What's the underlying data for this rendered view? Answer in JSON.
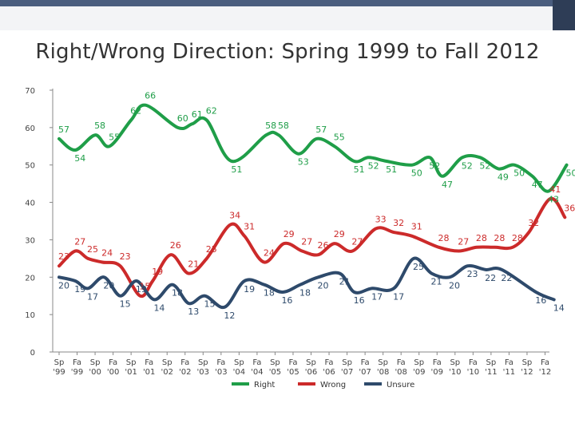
{
  "title": "Right/Wrong Direction: Spring 1999 to Fall 2012",
  "chart_data": {
    "type": "line",
    "title": "Right/Wrong Direction: Spring 1999 to Fall 2012",
    "xlabel": "",
    "ylabel": "",
    "ylim": [
      0,
      70
    ],
    "yticks": [
      0,
      10,
      20,
      30,
      40,
      50,
      60,
      70
    ],
    "grid": false,
    "legend_position": "bottom",
    "categories": [
      "Sp '99",
      "Fa '99",
      "Sp '00",
      "Fa '00",
      "Sp '01",
      "Fa '01",
      "Sp '02",
      "Fa '02",
      "Sp '03",
      "Fa '03",
      "Sp '04",
      "Fa '04",
      "Sp '05",
      "Fa '05",
      "Sp '06",
      "Fa '06",
      "Sp '07",
      "Fa '07",
      "Sp '08",
      "Fa '08",
      "Sp '09",
      "Fa '09",
      "Sp '10",
      "Fa '10",
      "Sp '11",
      "Fa '11",
      "Sp '12",
      "Fa '12"
    ],
    "x": [
      0,
      1,
      2,
      3,
      4,
      5,
      6,
      7,
      8,
      9,
      10,
      11,
      12,
      13,
      14,
      15,
      16,
      17,
      18,
      19,
      20,
      21,
      22,
      23,
      24,
      25,
      26,
      27
    ],
    "series": [
      {
        "name": "Right",
        "color": "#1f9e48",
        "points": [
          {
            "x": 0,
            "y": 57
          },
          {
            "x": 0.9,
            "y": 54
          },
          {
            "x": 2,
            "y": 58
          },
          {
            "x": 2.8,
            "y": 55
          },
          {
            "x": 4,
            "y": 62
          },
          {
            "x": 4.8,
            "y": 66
          },
          {
            "x": 6.6,
            "y": 60
          },
          {
            "x": 7.4,
            "y": 61
          },
          {
            "x": 8.2,
            "y": 62
          },
          {
            "x": 9.6,
            "y": 51
          },
          {
            "x": 11.5,
            "y": 58
          },
          {
            "x": 12.2,
            "y": 58
          },
          {
            "x": 13.3,
            "y": 53
          },
          {
            "x": 14.3,
            "y": 57
          },
          {
            "x": 15.3,
            "y": 55
          },
          {
            "x": 16.4,
            "y": 51
          },
          {
            "x": 17.2,
            "y": 52
          },
          {
            "x": 18.2,
            "y": 51
          },
          {
            "x": 19.6,
            "y": 50
          },
          {
            "x": 20.6,
            "y": 52
          },
          {
            "x": 21.3,
            "y": 47
          },
          {
            "x": 22.4,
            "y": 52
          },
          {
            "x": 23.4,
            "y": 52
          },
          {
            "x": 24.4,
            "y": 49
          },
          {
            "x": 25.3,
            "y": 50
          },
          {
            "x": 26.3,
            "y": 47
          },
          {
            "x": 27.2,
            "y": 43
          },
          {
            "x": 28.2,
            "y": 50
          }
        ]
      },
      {
        "name": "Wrong",
        "color": "#cc2a2a",
        "points": [
          {
            "x": 0,
            "y": 23
          },
          {
            "x": 0.9,
            "y": 27
          },
          {
            "x": 1.6,
            "y": 25
          },
          {
            "x": 2.4,
            "y": 24
          },
          {
            "x": 3.4,
            "y": 23
          },
          {
            "x": 4.5,
            "y": 15
          },
          {
            "x": 5.2,
            "y": 19
          },
          {
            "x": 6.2,
            "y": 26
          },
          {
            "x": 7.2,
            "y": 21
          },
          {
            "x": 8.2,
            "y": 25
          },
          {
            "x": 9.5,
            "y": 34
          },
          {
            "x": 10.3,
            "y": 31
          },
          {
            "x": 11.4,
            "y": 24
          },
          {
            "x": 12.5,
            "y": 29
          },
          {
            "x": 13.5,
            "y": 27
          },
          {
            "x": 14.4,
            "y": 26
          },
          {
            "x": 15.3,
            "y": 29
          },
          {
            "x": 16.3,
            "y": 27
          },
          {
            "x": 17.6,
            "y": 33
          },
          {
            "x": 18.6,
            "y": 32
          },
          {
            "x": 19.6,
            "y": 31
          },
          {
            "x": 21.1,
            "y": 28
          },
          {
            "x": 22.2,
            "y": 27
          },
          {
            "x": 23.2,
            "y": 28
          },
          {
            "x": 24.2,
            "y": 28
          },
          {
            "x": 25.2,
            "y": 28
          },
          {
            "x": 26.1,
            "y": 32
          },
          {
            "x": 27.3,
            "y": 41
          },
          {
            "x": 28.1,
            "y": 36
          }
        ]
      },
      {
        "name": "Unsure",
        "color": "#2e4a6b",
        "points": [
          {
            "x": 0,
            "y": 20
          },
          {
            "x": 0.9,
            "y": 19
          },
          {
            "x": 1.6,
            "y": 17
          },
          {
            "x": 2.5,
            "y": 20
          },
          {
            "x": 3.4,
            "y": 15
          },
          {
            "x": 4.3,
            "y": 19
          },
          {
            "x": 5.3,
            "y": 14
          },
          {
            "x": 6.3,
            "y": 18
          },
          {
            "x": 7.2,
            "y": 13
          },
          {
            "x": 8.1,
            "y": 15
          },
          {
            "x": 9.2,
            "y": 12
          },
          {
            "x": 10.3,
            "y": 19
          },
          {
            "x": 11.4,
            "y": 18
          },
          {
            "x": 12.4,
            "y": 16
          },
          {
            "x": 13.4,
            "y": 18
          },
          {
            "x": 14.4,
            "y": 20
          },
          {
            "x": 15.6,
            "y": 21
          },
          {
            "x": 16.4,
            "y": 16
          },
          {
            "x": 17.4,
            "y": 17
          },
          {
            "x": 18.6,
            "y": 17
          },
          {
            "x": 19.7,
            "y": 25
          },
          {
            "x": 20.7,
            "y": 21
          },
          {
            "x": 21.7,
            "y": 20
          },
          {
            "x": 22.7,
            "y": 23
          },
          {
            "x": 23.7,
            "y": 22
          },
          {
            "x": 24.6,
            "y": 22
          },
          {
            "x": 26.5,
            "y": 16
          },
          {
            "x": 27.5,
            "y": 14
          }
        ]
      }
    ],
    "legend": [
      "Right",
      "Wrong",
      "Unsure"
    ]
  }
}
